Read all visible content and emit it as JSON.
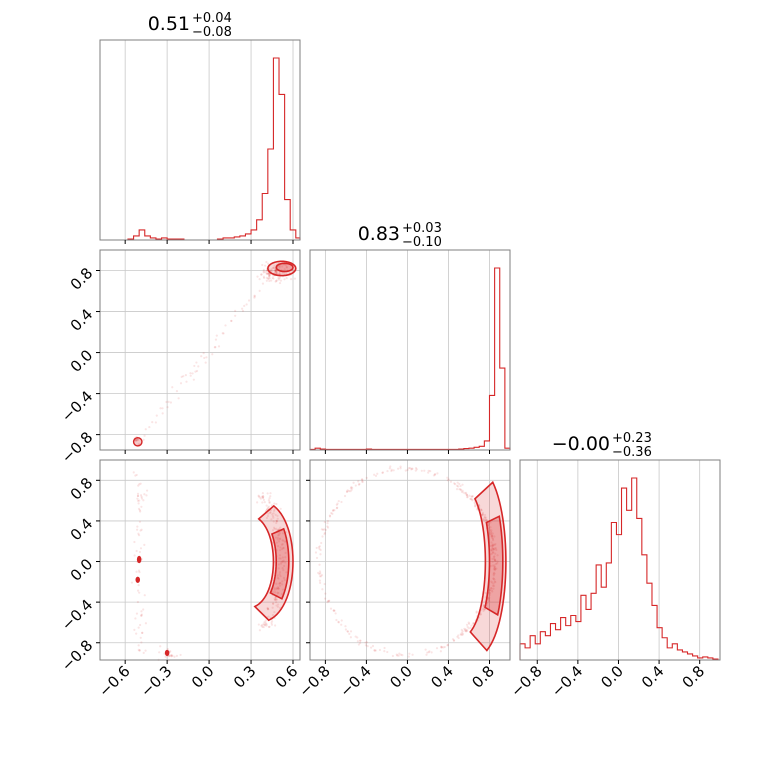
{
  "chart_data": {
    "type": "corner",
    "color": "#d62728",
    "grid": true,
    "titles": [
      {
        "value": "0.51",
        "upper": "+0.04",
        "lower": "−0.08"
      },
      {
        "value": "0.83",
        "upper": "+0.03",
        "lower": "−0.10"
      },
      {
        "value": "−0.00",
        "upper": "+0.23",
        "lower": "−0.36"
      }
    ],
    "ranges": [
      [
        -0.78,
        0.65
      ],
      [
        -0.95,
        1.0
      ],
      [
        -0.97,
        1.0
      ]
    ],
    "x_ticks": [
      {
        "values": [
          -0.6,
          -0.3,
          0.0,
          0.3,
          0.6
        ],
        "labels": [
          "−0.6",
          "−0.3",
          "0.0",
          "0.3",
          "0.6"
        ]
      },
      {
        "values": [
          -0.8,
          -0.4,
          0.0,
          0.4,
          0.8
        ],
        "labels": [
          "−0.8",
          "−0.4",
          "0.0",
          "0.4",
          "0.8"
        ]
      },
      {
        "values": [
          -0.8,
          -0.4,
          0.0,
          0.4,
          0.8
        ],
        "labels": [
          "−0.8",
          "−0.4",
          "0.0",
          "0.4",
          "0.8"
        ]
      }
    ],
    "y_ticks": {
      "values": [
        -0.8,
        -0.4,
        0.0,
        0.4,
        0.8
      ],
      "labels": [
        "−0.8",
        "−0.4",
        "0.0",
        "0.4",
        "0.8"
      ]
    },
    "hist_0": {
      "bins": [
        -0.78,
        -0.74,
        -0.7,
        -0.66,
        -0.62,
        -0.58,
        -0.54,
        -0.5,
        -0.46,
        -0.42,
        -0.38,
        -0.34,
        -0.3,
        -0.26,
        -0.22,
        -0.18,
        -0.14,
        -0.1,
        -0.06,
        -0.02,
        0.02,
        0.06,
        0.1,
        0.14,
        0.18,
        0.22,
        0.26,
        0.3,
        0.34,
        0.38,
        0.42,
        0.46,
        0.5,
        0.54,
        0.58,
        0.62,
        0.65
      ],
      "counts": [
        0,
        0,
        0,
        0,
        0,
        0.5,
        2,
        5,
        2,
        1,
        0.5,
        1,
        0.5,
        0.5,
        0.5,
        0,
        0,
        0,
        0,
        0,
        0,
        0.5,
        1,
        1,
        1.5,
        2,
        3,
        5,
        10,
        23,
        45,
        90,
        72,
        20,
        5,
        1
      ]
    },
    "hist_1": {
      "bins": [
        -0.95,
        -0.9,
        -0.85,
        -0.8,
        -0.75,
        -0.7,
        -0.65,
        -0.6,
        -0.55,
        -0.5,
        -0.45,
        -0.4,
        -0.35,
        -0.3,
        -0.25,
        -0.2,
        -0.15,
        -0.1,
        -0.05,
        0.0,
        0.05,
        0.1,
        0.15,
        0.2,
        0.25,
        0.3,
        0.35,
        0.4,
        0.45,
        0.5,
        0.55,
        0.6,
        0.65,
        0.7,
        0.75,
        0.8,
        0.85,
        0.9,
        0.95,
        1.0
      ],
      "counts": [
        0.3,
        1,
        0.5,
        0.3,
        0.3,
        0.3,
        0.3,
        0.3,
        0.3,
        0.3,
        0.3,
        0.5,
        0.3,
        0.3,
        0.3,
        0.3,
        0.3,
        0.3,
        0.3,
        0.3,
        0.3,
        0.3,
        0.3,
        0.3,
        0.3,
        0.3,
        0.3,
        0.3,
        0.3,
        0.5,
        0.8,
        1,
        1.5,
        2,
        5,
        30,
        100,
        45,
        1
      ]
    },
    "hist_2": {
      "bins": [
        -0.97,
        -0.92,
        -0.87,
        -0.82,
        -0.77,
        -0.72,
        -0.67,
        -0.62,
        -0.57,
        -0.52,
        -0.47,
        -0.42,
        -0.37,
        -0.32,
        -0.27,
        -0.22,
        -0.17,
        -0.12,
        -0.07,
        -0.02,
        0.03,
        0.08,
        0.13,
        0.18,
        0.23,
        0.28,
        0.33,
        0.38,
        0.43,
        0.48,
        0.53,
        0.58,
        0.63,
        0.68,
        0.73,
        0.78,
        0.83,
        0.88,
        0.93,
        0.98
      ],
      "counts": [
        8,
        6,
        12,
        8,
        14,
        12,
        18,
        15,
        21,
        17,
        22,
        19,
        32,
        25,
        33,
        47,
        36,
        48,
        68,
        62,
        85,
        74,
        90,
        70,
        52,
        38,
        27,
        16,
        11,
        6,
        8,
        5,
        4,
        3,
        2,
        1,
        1.5,
        1,
        0.5
      ]
    }
  }
}
